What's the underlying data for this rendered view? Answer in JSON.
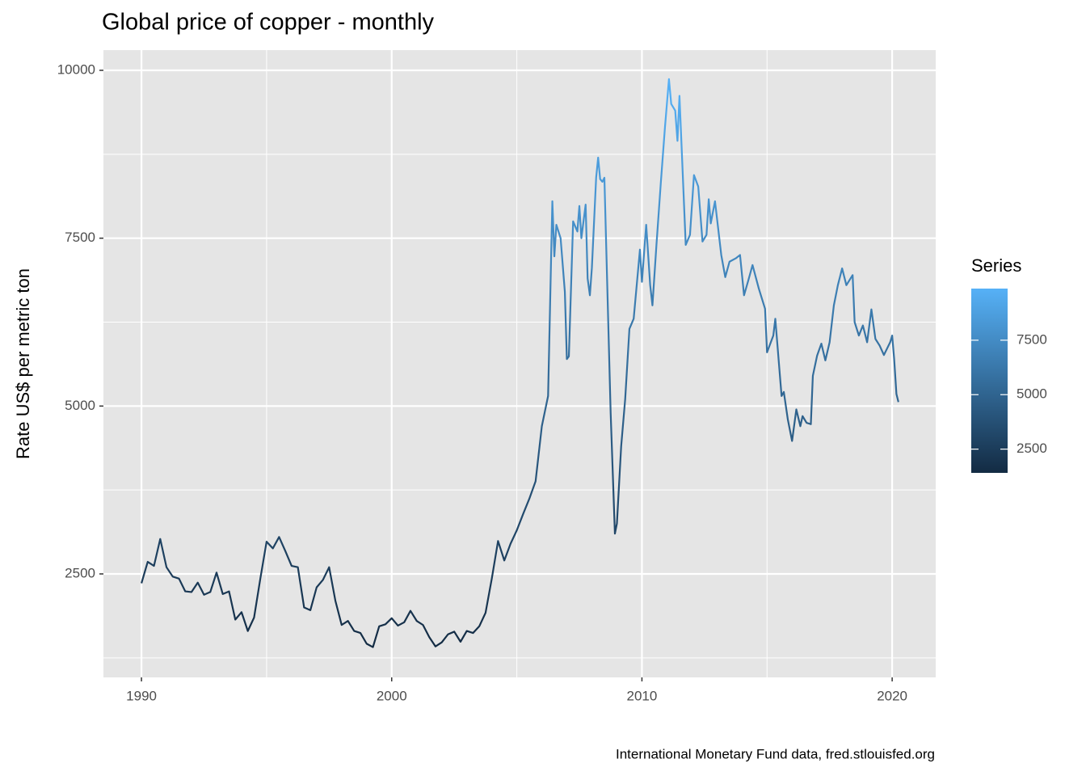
{
  "chart_data": {
    "type": "line",
    "title": "Global price of copper - monthly",
    "y_label": "Rate US$ per metric ton",
    "caption": "International Monetary Fund data, fred.stlouisfed.org",
    "xlim": [
      1988.48,
      2021.74
    ],
    "xticks": [
      1990,
      2000,
      2010,
      2020
    ],
    "ylim": [
      959,
      10301
    ],
    "yticks": [
      2500,
      5000,
      7500,
      10000
    ],
    "grid": true,
    "legend_position": "right",
    "legend_title": "Series",
    "legend_ticks": [
      2500,
      5000,
      7500
    ],
    "color_low": "#132B43",
    "color_high": "#56B1F7",
    "series": [
      {
        "name": "Series",
        "x": [
          1990.0,
          1990.25,
          1990.5,
          1990.75,
          1991.0,
          1991.25,
          1991.5,
          1991.75,
          1992.0,
          1992.25,
          1992.5,
          1992.75,
          1993.0,
          1993.25,
          1993.5,
          1993.75,
          1994.0,
          1994.25,
          1994.5,
          1994.75,
          1995.0,
          1995.25,
          1995.5,
          1995.75,
          1996.0,
          1996.25,
          1996.5,
          1996.75,
          1997.0,
          1997.25,
          1997.5,
          1997.75,
          1998.0,
          1998.25,
          1998.5,
          1998.75,
          1999.0,
          1999.25,
          1999.5,
          1999.75,
          2000.0,
          2000.25,
          2000.5,
          2000.75,
          2001.0,
          2001.25,
          2001.5,
          2001.75,
          2002.0,
          2002.25,
          2002.5,
          2002.75,
          2003.0,
          2003.25,
          2003.5,
          2003.75,
          2004.0,
          2004.25,
          2004.5,
          2004.75,
          2005.0,
          2005.25,
          2005.5,
          2005.75,
          2006.0,
          2006.25,
          2006.42,
          2006.5,
          2006.58,
          2006.75,
          2006.92,
          2007.0,
          2007.08,
          2007.25,
          2007.42,
          2007.5,
          2007.58,
          2007.75,
          2007.83,
          2007.92,
          2008.0,
          2008.17,
          2008.25,
          2008.33,
          2008.42,
          2008.5,
          2008.75,
          2008.92,
          2009.0,
          2009.17,
          2009.33,
          2009.5,
          2009.67,
          2009.92,
          2010.0,
          2010.17,
          2010.33,
          2010.42,
          2010.58,
          2010.75,
          2010.92,
          2011.08,
          2011.17,
          2011.33,
          2011.42,
          2011.5,
          2011.75,
          2011.92,
          2012.08,
          2012.25,
          2012.42,
          2012.58,
          2012.67,
          2012.75,
          2012.92,
          2013.17,
          2013.33,
          2013.5,
          2013.75,
          2013.92,
          2014.08,
          2014.25,
          2014.42,
          2014.67,
          2014.92,
          2015.0,
          2015.25,
          2015.33,
          2015.58,
          2015.67,
          2015.83,
          2016.0,
          2016.17,
          2016.33,
          2016.42,
          2016.58,
          2016.75,
          2016.83,
          2017.0,
          2017.17,
          2017.33,
          2017.5,
          2017.67,
          2017.83,
          2018.0,
          2018.17,
          2018.42,
          2018.5,
          2018.67,
          2018.83,
          2019.0,
          2019.17,
          2019.33,
          2019.5,
          2019.67,
          2019.92,
          2020.0,
          2020.08,
          2020.17,
          2020.25
        ],
        "values": [
          2360,
          2680,
          2620,
          3020,
          2600,
          2460,
          2430,
          2240,
          2230,
          2370,
          2190,
          2230,
          2520,
          2200,
          2240,
          1820,
          1930,
          1650,
          1850,
          2430,
          2980,
          2880,
          3050,
          2840,
          2620,
          2600,
          2000,
          1960,
          2300,
          2410,
          2600,
          2100,
          1740,
          1800,
          1650,
          1620,
          1460,
          1410,
          1720,
          1750,
          1840,
          1730,
          1780,
          1950,
          1800,
          1740,
          1560,
          1420,
          1480,
          1600,
          1640,
          1490,
          1650,
          1620,
          1720,
          1920,
          2430,
          2990,
          2700,
          2950,
          3150,
          3390,
          3620,
          3880,
          4700,
          5150,
          8050,
          7230,
          7700,
          7500,
          6700,
          5700,
          5740,
          7750,
          7600,
          7980,
          7500,
          8000,
          6900,
          6650,
          7060,
          8400,
          8700,
          8380,
          8340,
          8400,
          4900,
          3100,
          3250,
          4400,
          5100,
          6150,
          6300,
          7330,
          6850,
          7700,
          6800,
          6500,
          7400,
          8300,
          9150,
          9870,
          9500,
          9400,
          8950,
          9620,
          7400,
          7550,
          8440,
          8270,
          7450,
          7550,
          8080,
          7720,
          8050,
          7250,
          6920,
          7150,
          7200,
          7250,
          6650,
          6870,
          7100,
          6750,
          6450,
          5800,
          6050,
          6300,
          5150,
          5210,
          4800,
          4480,
          4950,
          4700,
          4850,
          4750,
          4730,
          5450,
          5750,
          5930,
          5680,
          5950,
          6500,
          6800,
          7050,
          6800,
          6950,
          6250,
          6050,
          6200,
          5950,
          6440,
          6000,
          5900,
          5760,
          5950,
          6050,
          5700,
          5180,
          5060
        ]
      }
    ]
  }
}
